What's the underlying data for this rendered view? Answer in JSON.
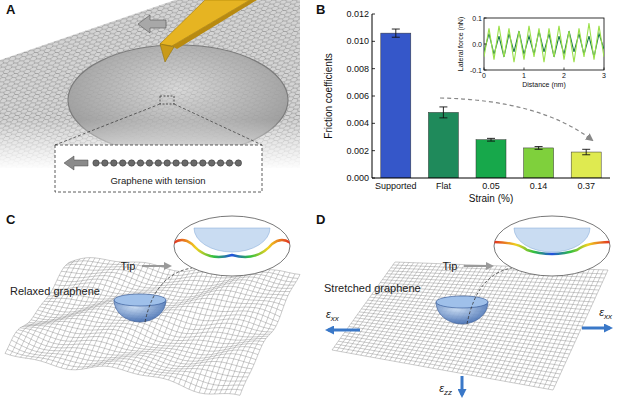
{
  "panels": {
    "A": {
      "label": "A",
      "inset_text": "Graphene with tension"
    },
    "B": {
      "label": "B"
    },
    "C": {
      "label": "C",
      "title": "Relaxed graphene",
      "tip": "Tip"
    },
    "D": {
      "label": "D",
      "title": "Stretched graphene",
      "tip": "Tip",
      "strains": [
        {
          "symbol": "ε",
          "sub": "xx"
        },
        {
          "symbol": "ε",
          "sub": "xx"
        },
        {
          "symbol": "ε",
          "sub": "zz"
        }
      ]
    }
  },
  "chart_data": [
    {
      "type": "bar",
      "y_label": "Friction coefficients",
      "x_label": "Strain (%)",
      "categories": [
        "Supported",
        "Flat",
        "0.05",
        "0.14",
        "0.37"
      ],
      "values": [
        0.0106,
        0.0048,
        0.0028,
        0.0022,
        0.0019
      ],
      "errors": [
        0.0003,
        0.0004,
        0.0001,
        0.0001,
        0.0002
      ],
      "colors": [
        "#3557c9",
        "#1f8a5b",
        "#17a84b",
        "#7fd03c",
        "#dfea50"
      ],
      "ylim": [
        0,
        0.012
      ],
      "yticks": [
        {
          "value": 0,
          "label": "0.000"
        },
        {
          "value": 0.002,
          "label": "0.002"
        },
        {
          "value": 0.004,
          "label": "0.004"
        },
        {
          "value": 0.006,
          "label": "0.006"
        },
        {
          "value": 0.008,
          "label": "0.008"
        },
        {
          "value": 0.01,
          "label": "0.010"
        },
        {
          "value": 0.012,
          "label": "0.012"
        }
      ]
    },
    {
      "type": "line",
      "x_label": "Distance (nm)",
      "y_label": "Lateral force (nN)",
      "x": [
        0,
        0.125,
        0.25,
        0.375,
        0.5,
        0.625,
        0.75,
        0.875,
        1,
        1.125,
        1.25,
        1.375,
        1.5,
        1.625,
        1.75,
        1.875,
        2,
        2.125,
        2.25,
        2.375,
        2.5,
        2.625,
        2.75,
        2.875,
        3
      ],
      "series": [
        {
          "color": "#1a7a4a",
          "values": [
            -0.03,
            0.04,
            -0.04,
            0.03,
            -0.05,
            0.04,
            -0.03,
            0.05,
            -0.04,
            0.03,
            -0.04,
            0.05,
            -0.03,
            0.04,
            -0.05,
            0.03,
            -0.04,
            0.05,
            -0.03,
            0.04,
            -0.04,
            0.03,
            -0.05,
            0.04,
            -0.02
          ]
        },
        {
          "color": "#9be04a",
          "values": [
            -0.05,
            0.06,
            -0.06,
            0.07,
            -0.05,
            0.06,
            -0.07,
            0.05,
            -0.06,
            0.07,
            -0.05,
            0.06,
            -0.07,
            0.06,
            -0.05,
            0.07,
            -0.06,
            0.05,
            -0.07,
            0.06,
            -0.05,
            0.08,
            -0.06,
            0.07,
            -0.05
          ]
        }
      ],
      "xlim": [
        0,
        3
      ],
      "xticks": [
        0,
        1,
        2,
        3
      ],
      "ylim": [
        -0.1,
        0.1
      ],
      "yticks": [
        -0.1,
        {
          "value": 0,
          "label": "0.0"
        },
        0.1
      ]
    }
  ]
}
